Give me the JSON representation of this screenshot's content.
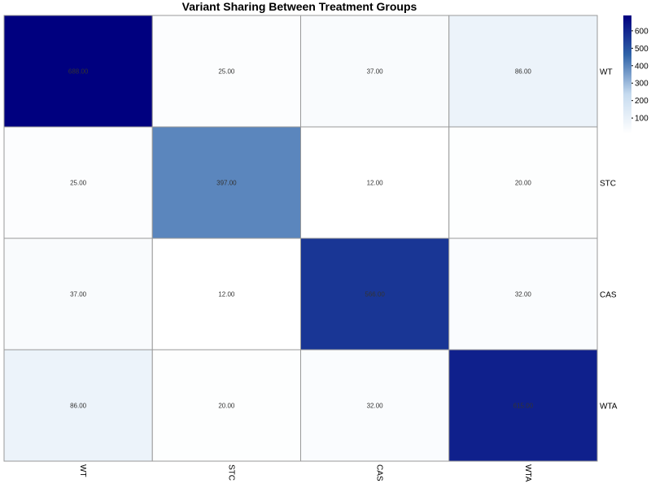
{
  "chart_data": {
    "type": "heatmap",
    "title": "Variant Sharing Between Treatment Groups",
    "xlabel": "",
    "ylabel": "",
    "rows": [
      "WT",
      "STC",
      "CAS",
      "WTA"
    ],
    "columns": [
      "WT",
      "STC",
      "CAS",
      "WTA"
    ],
    "values": [
      [
        688,
        25,
        37,
        86
      ],
      [
        25,
        397,
        12,
        20
      ],
      [
        37,
        12,
        566,
        32
      ],
      [
        86,
        20,
        32,
        615
      ]
    ],
    "cell_labels": [
      [
        "688.00",
        "25.00",
        "37.00",
        "86.00"
      ],
      [
        "25.00",
        "397.00",
        "12.00",
        "20.00"
      ],
      [
        "37.00",
        "12.00",
        "566.00",
        "32.00"
      ],
      [
        "86.00",
        "20.00",
        "32.00",
        "615.00"
      ]
    ],
    "colorscale": {
      "min": 12,
      "max": 688,
      "low_color": "#ffffff",
      "high_color": "#00007f",
      "stops": [
        "#ffffff",
        "#c6dbef",
        "#2f63a8",
        "#00007f"
      ]
    },
    "colorbar_ticks": [
      100,
      200,
      300,
      400,
      500,
      600
    ],
    "legend_position": "top-right",
    "grid": false
  }
}
